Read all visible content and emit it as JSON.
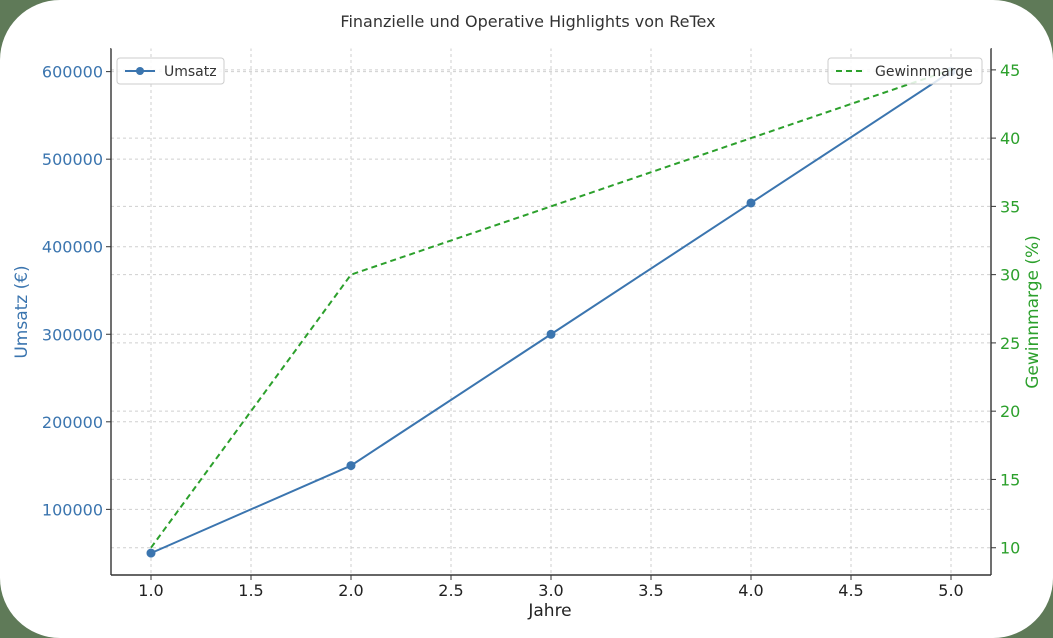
{
  "chart_data": {
    "type": "line",
    "title": "Finanzielle und Operative Highlights von ReTex",
    "xlabel": "Jahre",
    "ylabel_left": "Umsatz (€)",
    "ylabel_right": "Gewinnmarge (%)",
    "x": [
      1,
      2,
      3,
      4,
      5
    ],
    "xlim": [
      0.8,
      5.2
    ],
    "x_ticks": [
      "1.0",
      "1.5",
      "2.0",
      "2.5",
      "3.0",
      "3.5",
      "4.0",
      "4.5",
      "5.0"
    ],
    "grid": true,
    "series": [
      {
        "name": "Umsatz",
        "axis": "left",
        "values": [
          50000,
          150000,
          300000,
          450000,
          600000
        ],
        "color": "#3b75af",
        "style": "solid",
        "marker": "circle"
      },
      {
        "name": "Gewinnmarge",
        "axis": "right",
        "values": [
          10,
          30,
          35,
          40,
          45
        ],
        "color": "#2ca02c",
        "style": "dashed",
        "marker": "none"
      }
    ],
    "ylim_left": [
      25000,
      627000
    ],
    "ylim_right": [
      8.0,
      46.6
    ],
    "y_left_ticks": [
      "100000",
      "200000",
      "300000",
      "400000",
      "500000",
      "600000"
    ],
    "y_right_ticks": [
      "10",
      "15",
      "20",
      "25",
      "30",
      "35",
      "40",
      "45"
    ],
    "legend_left_placement": "top-left",
    "legend_right_placement": "top-right"
  }
}
